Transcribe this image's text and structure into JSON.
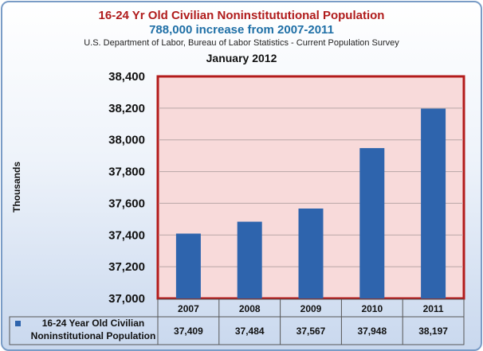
{
  "chart_data": {
    "type": "bar",
    "title": "16-24 Yr Old Civilian Noninstitututional Population",
    "subtitle": "788,000 increase from 2007-2011",
    "source": "U.S. Department of Labor, Bureau of Labor Statistics - Current Population Survey",
    "date": "January 2012",
    "ylabel": "Thousands",
    "categories": [
      "2007",
      "2008",
      "2009",
      "2010",
      "2011"
    ],
    "series": [
      {
        "name": "16-24 Year Old Civilian Noninstitutional Population",
        "values": [
          37409,
          37484,
          37567,
          37948,
          38197
        ],
        "value_labels": [
          "37,409",
          "37,484",
          "37,567",
          "37,948",
          "38,197"
        ],
        "color": "#2e64ad"
      }
    ],
    "ylim": [
      37000,
      38400
    ],
    "yticks": [
      37000,
      37200,
      37400,
      37600,
      37800,
      38000,
      38200,
      38400
    ],
    "ytick_labels": [
      "37,000",
      "37,200",
      "37,400",
      "37,600",
      "37,800",
      "38,000",
      "38,200",
      "38,400"
    ],
    "grid": true,
    "legend": "data-table",
    "plot_background": "#f8dada",
    "plot_border_color": "#b31b1b"
  }
}
